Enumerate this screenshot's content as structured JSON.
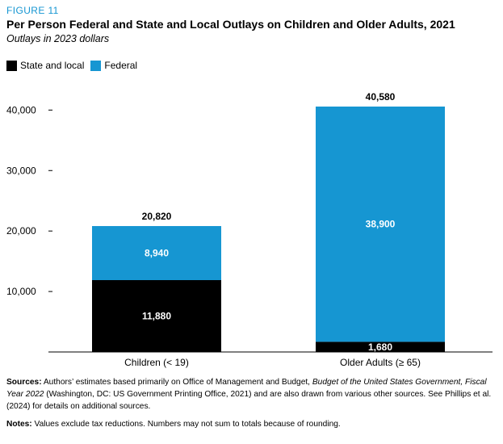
{
  "header": {
    "figure_label": "FIGURE 11",
    "title": "Per Person Federal and State and Local Outlays on Children and Older Adults, 2021",
    "subtitle": "Outlays in 2023 dollars"
  },
  "legend": [
    {
      "label": "State and local",
      "color": "#000000"
    },
    {
      "label": "Federal",
      "color": "#1696d2"
    }
  ],
  "chart_data": {
    "type": "bar",
    "stacked": true,
    "categories": [
      "Children (< 19)",
      "Older Adults (≥ 65)"
    ],
    "series": [
      {
        "name": "State and local",
        "color": "#000000",
        "values": [
          11880,
          1680
        ],
        "labels": [
          "11,880",
          "1,680"
        ]
      },
      {
        "name": "Federal",
        "color": "#1696d2",
        "values": [
          8940,
          38900
        ],
        "labels": [
          "8,940",
          "38,900"
        ]
      }
    ],
    "totals": [
      20820,
      40580
    ],
    "total_labels": [
      "20,820",
      "40,580"
    ],
    "yticks": [
      10000,
      20000,
      30000,
      40000
    ],
    "ytick_labels": [
      "10,000",
      "20,000",
      "30,000",
      "40,000"
    ],
    "ylim": [
      0,
      40580
    ],
    "grid": false,
    "legend_position": "top-left"
  },
  "notes": {
    "sources_label": "Sources:",
    "sources_text_1": " Authors’ estimates based primarily on Office of Management and Budget, ",
    "sources_italic": "Budget of the United States Government, Fiscal Year 2022",
    "sources_text_2": " (Washington, DC: US Government Printing Office, 2021) and are also drawn from various other sources. See Phillips et al. (2024) for details on additional sources.",
    "notes_label": "Notes:",
    "notes_text": " Values exclude tax reductions. Numbers may not sum to totals because of rounding."
  }
}
